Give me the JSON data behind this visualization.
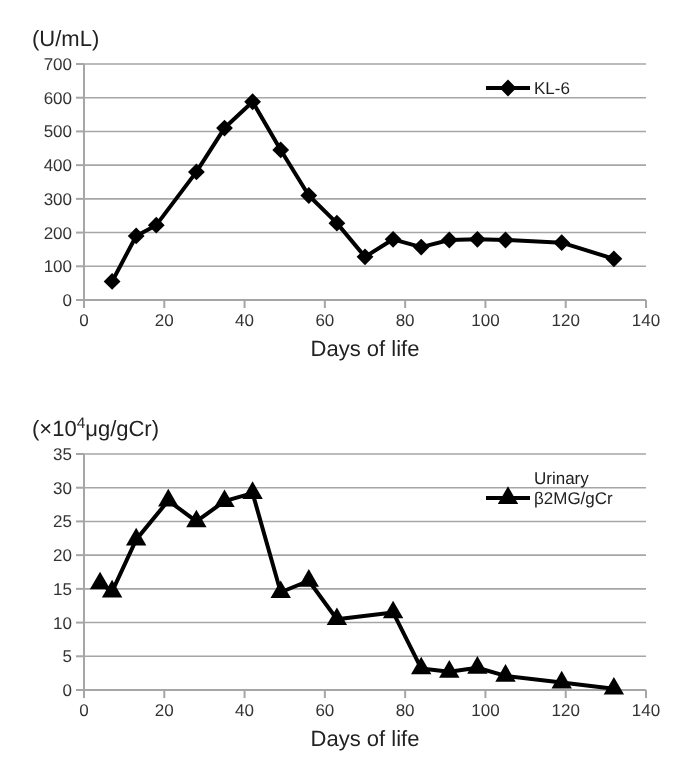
{
  "chart_data": [
    {
      "type": "line",
      "ylabel": "(U/mL)",
      "xlabel": "Days of life",
      "xlim": [
        0,
        140
      ],
      "xticks": [
        0,
        20,
        40,
        60,
        80,
        100,
        120,
        140
      ],
      "ylim": [
        0,
        700
      ],
      "yticks": [
        0,
        100,
        200,
        300,
        400,
        500,
        600,
        700
      ],
      "grid": "y",
      "legend": "top right",
      "marker": "diamond",
      "series": [
        {
          "name": "KL-6",
          "color": "#000000",
          "x": [
            7,
            13,
            18,
            28,
            35,
            42,
            49,
            56,
            63,
            70,
            77,
            84,
            91,
            98,
            105,
            119,
            132
          ],
          "values": [
            55,
            190,
            222,
            380,
            510,
            588,
            445,
            310,
            228,
            128,
            180,
            157,
            178,
            180,
            178,
            170,
            122
          ]
        }
      ]
    },
    {
      "type": "line",
      "ylabel": "(×10$^{4}$μg/gCr)",
      "xlabel": "Days of life",
      "xlim": [
        0,
        140
      ],
      "xticks": [
        0,
        20,
        40,
        60,
        80,
        100,
        120,
        140
      ],
      "ylim": [
        0,
        35
      ],
      "yticks": [
        0,
        5,
        10,
        15,
        20,
        25,
        30,
        35
      ],
      "grid": "y",
      "legend": "top right",
      "marker": "triangle",
      "series": [
        {
          "name": "Urinary β2MG/gCr",
          "color": "#000000",
          "x": [
            4,
            7,
            13,
            21,
            28,
            35,
            42,
            49,
            56,
            63,
            77,
            84,
            91,
            98,
            105,
            119,
            132
          ],
          "values": [
            15.8,
            14.6,
            22.3,
            28.1,
            25,
            28,
            29.2,
            14.5,
            16.2,
            10.5,
            11.5,
            3.2,
            2.7,
            3.3,
            2.1,
            1.1,
            0.2
          ]
        }
      ]
    }
  ]
}
